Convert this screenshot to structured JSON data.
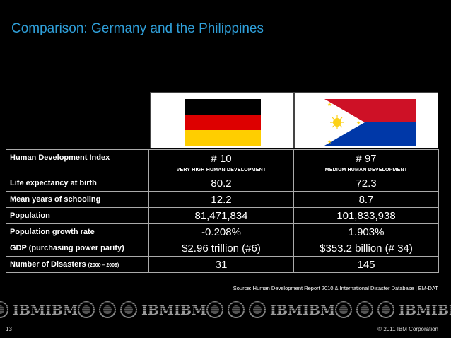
{
  "title": "Comparison: Germany and the Philippines",
  "flags": [
    {
      "country": "Germany",
      "colors": [
        "#000000",
        "#dd0000",
        "#ffce00"
      ]
    },
    {
      "country": "Philippines",
      "colors": [
        "#0038a8",
        "#ce1126",
        "#ffffff",
        "#fcd116"
      ]
    }
  ],
  "table": {
    "hdi": {
      "label": "Human Development Index",
      "germany_rank": "# 10",
      "germany_category": "VERY HIGH HUMAN DEVELOPMENT",
      "philippines_rank": "# 97",
      "philippines_category": "MEDIUM HUMAN DEVELOPMENT"
    },
    "rows": [
      {
        "label": "Life expectancy at birth",
        "germany": "80.2",
        "philippines": "72.3"
      },
      {
        "label": "Mean years of schooling",
        "germany": "12.2",
        "philippines": "8.7"
      },
      {
        "label": "Population",
        "germany": "81,471,834",
        "philippines": "101,833,938"
      },
      {
        "label": "Population growth rate",
        "germany": "-0.208%",
        "philippines": "1.903%"
      },
      {
        "label": "GDP (purchasing power parity)",
        "germany": "$2.96 trillion (#6)",
        "philippines": "$353.2 billion (# 34)"
      },
      {
        "label": "Number of Disasters",
        "note": "(2000 – 2009)",
        "germany": "31",
        "philippines": "145"
      }
    ]
  },
  "source": "Source:  Human Development Report 2010 & International Disaster Database | EM-DAT",
  "logo_band_text": "IBM",
  "footer": {
    "page_number": "13",
    "copyright": "© 2011 IBM Corporation"
  }
}
